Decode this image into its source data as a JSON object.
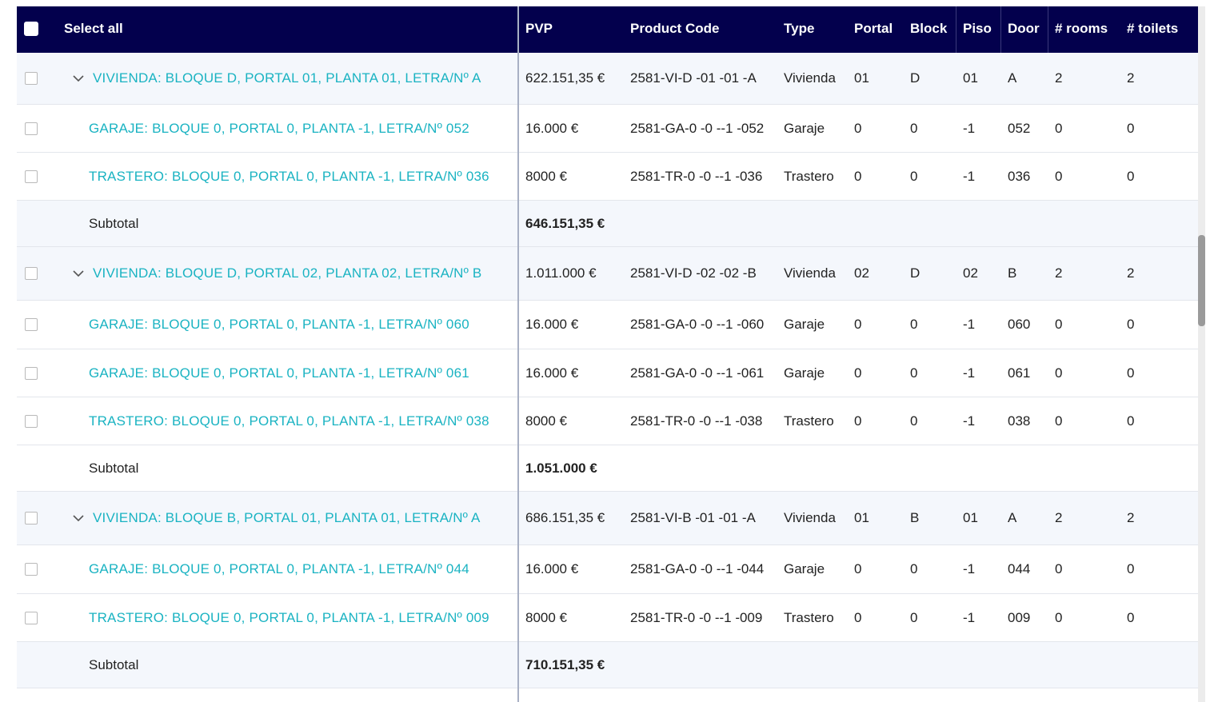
{
  "header": {
    "select_all": "Select all",
    "columns": [
      "PVP",
      "Product Code",
      "Type",
      "Portal",
      "Block",
      "Piso",
      "Door",
      "# rooms",
      "# toilets"
    ]
  },
  "rows": [
    {
      "kind": "parent",
      "name": "VIVIENDA: BLOQUE D, PORTAL 01, PLANTA 01, LETRA/Nº A",
      "pvp": "622.151,35 €",
      "code": "2581-VI-D -01 -01 -A",
      "type": "Vivienda",
      "portal": "01",
      "block": "D",
      "piso": "01",
      "door": "A",
      "rooms": "2",
      "toilets": "2"
    },
    {
      "kind": "child",
      "name": "GARAJE: BLOQUE 0, PORTAL 0, PLANTA -1, LETRA/Nº 052",
      "pvp": "16.000 €",
      "code": "2581-GA-0 -0 --1 -052",
      "type": "Garaje",
      "portal": "0",
      "block": "0",
      "piso": "-1",
      "door": "052",
      "rooms": "0",
      "toilets": "0"
    },
    {
      "kind": "child",
      "name": "TRASTERO: BLOQUE 0, PORTAL 0, PLANTA -1, LETRA/Nº 036",
      "pvp": "8000 €",
      "code": "2581-TR-0 -0 --1 -036",
      "type": "Trastero",
      "portal": "0",
      "block": "0",
      "piso": "-1",
      "door": "036",
      "rooms": "0",
      "toilets": "0"
    },
    {
      "kind": "subtotal",
      "label": "Subtotal",
      "pvp": "646.151,35 €"
    },
    {
      "kind": "parent",
      "name": "VIVIENDA: BLOQUE D, PORTAL 02, PLANTA 02, LETRA/Nº B",
      "pvp": "1.011.000 €",
      "code": "2581-VI-D -02 -02 -B",
      "type": "Vivienda",
      "portal": "02",
      "block": "D",
      "piso": "02",
      "door": "B",
      "rooms": "2",
      "toilets": "2"
    },
    {
      "kind": "child",
      "name": "GARAJE: BLOQUE 0, PORTAL 0, PLANTA -1, LETRA/Nº 060",
      "pvp": "16.000 €",
      "code": "2581-GA-0 -0 --1 -060",
      "type": "Garaje",
      "portal": "0",
      "block": "0",
      "piso": "-1",
      "door": "060",
      "rooms": "0",
      "toilets": "0"
    },
    {
      "kind": "child",
      "name": "GARAJE: BLOQUE 0, PORTAL 0, PLANTA -1, LETRA/Nº 061",
      "pvp": "16.000 €",
      "code": "2581-GA-0 -0 --1 -061",
      "type": "Garaje",
      "portal": "0",
      "block": "0",
      "piso": "-1",
      "door": "061",
      "rooms": "0",
      "toilets": "0"
    },
    {
      "kind": "child",
      "name": "TRASTERO: BLOQUE 0, PORTAL 0, PLANTA -1, LETRA/Nº 038",
      "pvp": "8000 €",
      "code": "2581-TR-0 -0 --1 -038",
      "type": "Trastero",
      "portal": "0",
      "block": "0",
      "piso": "-1",
      "door": "038",
      "rooms": "0",
      "toilets": "0"
    },
    {
      "kind": "subtotal",
      "label": "Subtotal",
      "pvp": "1.051.000 €"
    },
    {
      "kind": "parent",
      "name": "VIVIENDA: BLOQUE B, PORTAL 01, PLANTA 01, LETRA/Nº A",
      "pvp": "686.151,35 €",
      "code": "2581-VI-B -01 -01 -A",
      "type": "Vivienda",
      "portal": "01",
      "block": "B",
      "piso": "01",
      "door": "A",
      "rooms": "2",
      "toilets": "2"
    },
    {
      "kind": "child",
      "name": "GARAJE: BLOQUE 0, PORTAL 0, PLANTA -1, LETRA/Nº 044",
      "pvp": "16.000 €",
      "code": "2581-GA-0 -0 --1 -044",
      "type": "Garaje",
      "portal": "0",
      "block": "0",
      "piso": "-1",
      "door": "044",
      "rooms": "0",
      "toilets": "0"
    },
    {
      "kind": "child",
      "name": "TRASTERO: BLOQUE 0, PORTAL 0, PLANTA -1, LETRA/Nº 009",
      "pvp": "8000 €",
      "code": "2581-TR-0 -0 --1 -009",
      "type": "Trastero",
      "portal": "0",
      "block": "0",
      "piso": "-1",
      "door": "009",
      "rooms": "0",
      "toilets": "0"
    },
    {
      "kind": "subtotal",
      "label": "Subtotal",
      "pvp": "710.151,35 €"
    }
  ],
  "colors": {
    "header_bg": "#03004d",
    "link": "#1ab3c2",
    "parent_bg": "#f4f7fc"
  }
}
